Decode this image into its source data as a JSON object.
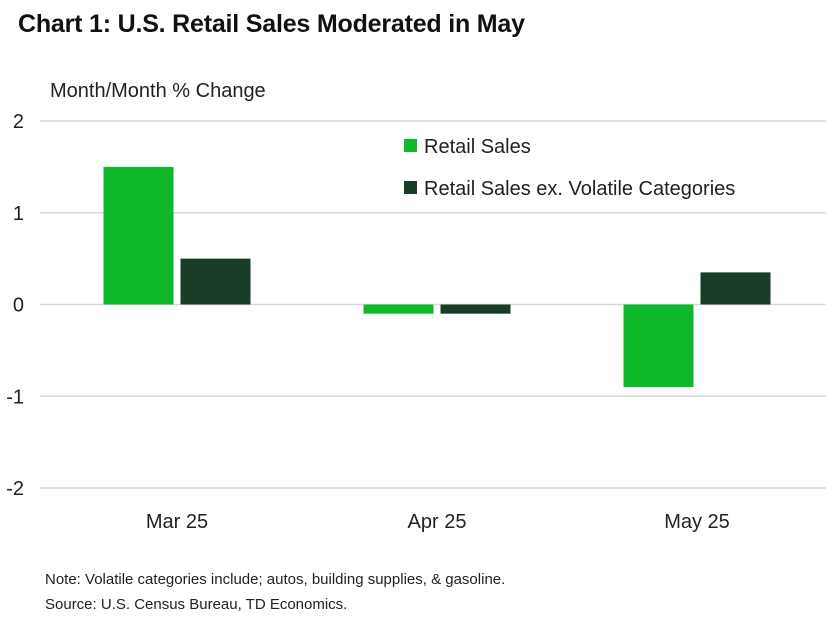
{
  "title": "Chart 1: U.S. Retail Sales Moderated in May",
  "notes": {
    "note": "Note: Volatile categories include; autos, building supplies, & gasoline.",
    "source": "Source: U.S. Census Bureau, TD Economics."
  },
  "colors": {
    "retail_sales": "#10b92c",
    "retail_ex_volatile": "#1a3d27",
    "grid": "#d9d9d9"
  },
  "chart_data": {
    "type": "bar",
    "title": "Chart 1: U.S. Retail Sales Moderated in May",
    "xlabel": "",
    "ylabel": "Month/Month % Change",
    "categories": [
      "Mar 25",
      "Apr 25",
      "May 25"
    ],
    "series": [
      {
        "name": "Retail Sales",
        "values": [
          1.5,
          -0.1,
          -0.9
        ]
      },
      {
        "name": "Retail Sales ex. Volatile Categories",
        "values": [
          0.5,
          -0.1,
          0.35
        ]
      }
    ],
    "ylim": [
      -2,
      2
    ],
    "yticks": [
      2,
      1,
      0,
      -1,
      -2
    ],
    "grid": true,
    "legend": "top-right"
  }
}
